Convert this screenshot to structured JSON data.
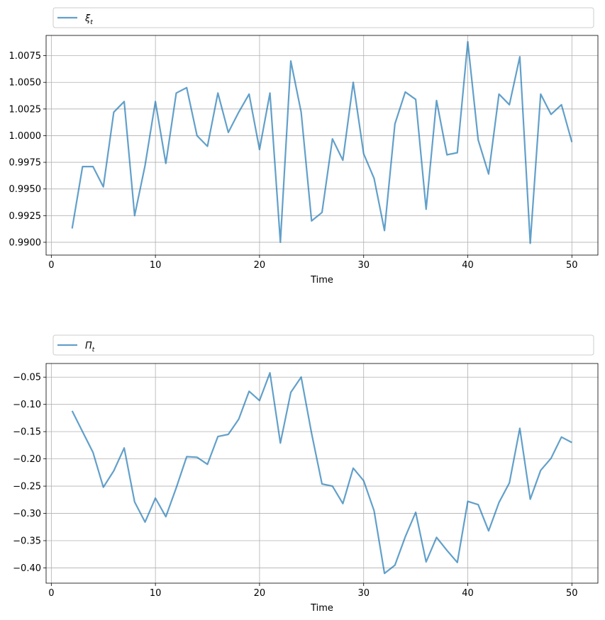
{
  "chart_data": [
    {
      "type": "line",
      "xlabel": "Time",
      "legend": {
        "placement": "top",
        "entries": [
          {
            "base": "ξ",
            "sub": "t"
          }
        ]
      },
      "color": "#1f77b4",
      "grid": true,
      "xlim": [
        -0.5,
        52.5
      ],
      "ylim": [
        0.9888,
        1.0094
      ],
      "xticks": [
        0,
        10,
        20,
        30,
        40,
        50
      ],
      "xtick_labels": [
        "0",
        "10",
        "20",
        "30",
        "40",
        "50"
      ],
      "yticks": [
        0.99,
        0.9925,
        0.995,
        0.9975,
        1.0,
        1.0025,
        1.005,
        1.0075
      ],
      "ytick_labels": [
        "0.9900",
        "0.9925",
        "0.9950",
        "0.9975",
        "1.0000",
        "1.0025",
        "1.0050",
        "1.0075"
      ],
      "series": [
        {
          "x": [
            2,
            3,
            4,
            5,
            6,
            7,
            8,
            9,
            10,
            11,
            12,
            13,
            14,
            15,
            16,
            17,
            18,
            19,
            20,
            21,
            22,
            23,
            24,
            25,
            26,
            27,
            28,
            29,
            30,
            31,
            32,
            33,
            34,
            35,
            36,
            37,
            38,
            39,
            40,
            41,
            42,
            43,
            44,
            45,
            46,
            47,
            48,
            49,
            50
          ],
          "values": [
            0.9913,
            0.9971,
            0.9971,
            0.9952,
            1.0022,
            1.0032,
            0.9925,
            0.9972,
            1.0032,
            0.9974,
            1.004,
            1.0045,
            1.0,
            0.999,
            1.004,
            1.0003,
            1.0022,
            1.0039,
            0.9987,
            1.004,
            0.99,
            1.007,
            1.0022,
            0.992,
            0.9928,
            0.9997,
            0.9977,
            1.005,
            0.9983,
            0.996,
            0.9911,
            1.0011,
            1.0041,
            1.0034,
            0.9931,
            1.0033,
            0.9982,
            0.9984,
            1.0088,
            0.9996,
            0.9964,
            1.0039,
            1.0029,
            1.0074,
            0.9899,
            1.0039,
            1.002,
            1.0029,
            0.9994
          ]
        }
      ]
    },
    {
      "type": "line",
      "xlabel": "Time",
      "legend": {
        "placement": "top",
        "entries": [
          {
            "base": "Π",
            "sub": "t"
          }
        ]
      },
      "color": "#1f77b4",
      "grid": true,
      "xlim": [
        -0.5,
        52.5
      ],
      "ylim": [
        -0.428,
        -0.025
      ],
      "xticks": [
        0,
        10,
        20,
        30,
        40,
        50
      ],
      "xtick_labels": [
        "0",
        "10",
        "20",
        "30",
        "40",
        "50"
      ],
      "yticks": [
        -0.4,
        -0.35,
        -0.3,
        -0.25,
        -0.2,
        -0.15,
        -0.1,
        -0.05
      ],
      "ytick_labels": [
        "−0.40",
        "−0.35",
        "−0.30",
        "−0.25",
        "−0.20",
        "−0.15",
        "−0.10",
        "−0.05"
      ],
      "series": [
        {
          "x": [
            2,
            3,
            4,
            5,
            6,
            7,
            8,
            9,
            10,
            11,
            12,
            13,
            14,
            15,
            16,
            17,
            18,
            19,
            20,
            21,
            22,
            23,
            24,
            25,
            26,
            27,
            28,
            29,
            30,
            31,
            32,
            33,
            34,
            35,
            36,
            37,
            38,
            39,
            40,
            41,
            42,
            43,
            44,
            45,
            46,
            47,
            48,
            49,
            50
          ],
          "values": [
            -0.112,
            -0.15,
            -0.188,
            -0.252,
            -0.222,
            -0.18,
            -0.279,
            -0.316,
            -0.272,
            -0.306,
            -0.253,
            -0.196,
            -0.197,
            -0.21,
            -0.159,
            -0.155,
            -0.127,
            -0.076,
            -0.093,
            -0.042,
            -0.171,
            -0.078,
            -0.05,
            -0.153,
            -0.246,
            -0.25,
            -0.282,
            -0.217,
            -0.24,
            -0.295,
            -0.41,
            -0.395,
            -0.343,
            -0.298,
            -0.389,
            -0.344,
            -0.368,
            -0.39,
            -0.278,
            -0.284,
            -0.332,
            -0.28,
            -0.244,
            -0.144,
            -0.274,
            -0.221,
            -0.199,
            -0.16,
            -0.17
          ]
        }
      ]
    }
  ]
}
